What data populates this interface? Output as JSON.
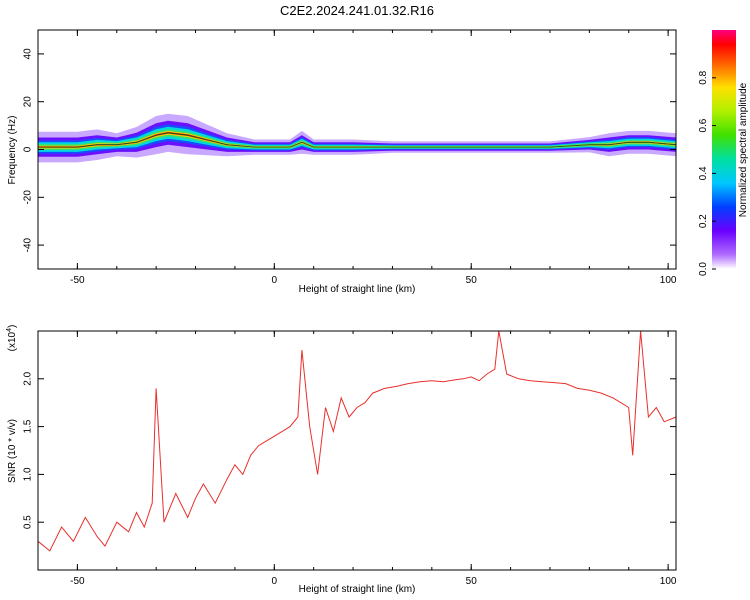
{
  "title": "C2E2.2024.241.01.32.R16",
  "colors": {
    "snr_line": "#e8302c",
    "spectrogram_low": "#7a00ff",
    "spectrogram_mid": "#00e0d0",
    "spectrogram_high": "#ff0000",
    "axes": "#000000"
  },
  "chart_data": [
    {
      "type": "heatmap",
      "name": "spectrogram",
      "xlabel": "Height of straight line (km)",
      "ylabel": "Frequency (Hz)",
      "xlim": [
        -60,
        102
      ],
      "ylim": [
        -50,
        50
      ],
      "xticks": [
        "-50",
        "0",
        "50",
        "100"
      ],
      "yticks": [
        "40",
        "20",
        "0",
        "-20",
        "-40"
      ],
      "grid": false,
      "band": {
        "x": [
          -60,
          -55,
          -50,
          -45,
          -40,
          -35,
          -30,
          -27,
          -22,
          -17,
          -12,
          -5,
          0,
          4,
          7,
          10,
          15,
          20,
          30,
          40,
          50,
          60,
          70,
          80,
          85,
          90,
          95,
          102
        ],
        "center": [
          1,
          1,
          1,
          2,
          2,
          3,
          6,
          7,
          6,
          4,
          2,
          1,
          1,
          1,
          3,
          1,
          1,
          1,
          1,
          1,
          1,
          1,
          1,
          2,
          2,
          3,
          3,
          2
        ],
        "width": [
          4,
          4,
          4,
          4,
          3,
          4,
          5,
          5,
          5,
          4,
          3,
          2,
          2,
          2,
          3,
          2,
          2,
          2,
          1.5,
          1.5,
          1.5,
          1.5,
          1.5,
          2,
          3,
          3,
          3,
          3
        ]
      },
      "colorbar": {
        "label": "Normalized spectral amplitude",
        "ticks": [
          "0.0",
          "0.2",
          "0.4",
          "0.6",
          "0.8"
        ],
        "range": [
          0,
          1
        ]
      }
    },
    {
      "type": "line",
      "name": "snr",
      "xlabel": "Height of straight line (km)",
      "ylabel": "SNR (10 * v/v)",
      "scale_label": "(x10",
      "scale_exp": "4",
      "xlim": [
        -60,
        102
      ],
      "ylim": [
        0,
        2.5
      ],
      "xticks": [
        "-50",
        "0",
        "50",
        "100"
      ],
      "yticks": [
        "2.0",
        "1.5",
        "1.0",
        "0.5"
      ],
      "grid": false,
      "x": [
        -60,
        -57,
        -54,
        -51,
        -48,
        -45,
        -43,
        -40,
        -37,
        -35,
        -33,
        -31,
        -30,
        -28,
        -25,
        -22,
        -20,
        -18,
        -15,
        -12,
        -10,
        -8,
        -6,
        -4,
        -2,
        0,
        2,
        4,
        6,
        7,
        9,
        11,
        13,
        15,
        17,
        19,
        21,
        23,
        25,
        28,
        31,
        34,
        37,
        40,
        43,
        46,
        48,
        50,
        52,
        54,
        56,
        57,
        59,
        62,
        65,
        68,
        71,
        74,
        77,
        80,
        83,
        86,
        88,
        90,
        91,
        93,
        95,
        97,
        99,
        102
      ],
      "y": [
        0.3,
        0.2,
        0.45,
        0.3,
        0.55,
        0.35,
        0.25,
        0.5,
        0.4,
        0.6,
        0.45,
        0.7,
        1.9,
        0.5,
        0.8,
        0.55,
        0.75,
        0.9,
        0.7,
        0.95,
        1.1,
        1.0,
        1.2,
        1.3,
        1.35,
        1.4,
        1.45,
        1.5,
        1.6,
        2.3,
        1.5,
        1.0,
        1.7,
        1.45,
        1.8,
        1.6,
        1.7,
        1.75,
        1.85,
        1.9,
        1.92,
        1.95,
        1.97,
        1.98,
        1.97,
        1.99,
        2.0,
        2.02,
        1.98,
        2.05,
        2.1,
        2.55,
        2.05,
        2.0,
        1.98,
        1.97,
        1.96,
        1.95,
        1.9,
        1.88,
        1.85,
        1.8,
        1.75,
        1.7,
        1.2,
        2.5,
        1.6,
        1.7,
        1.55,
        1.6
      ]
    }
  ]
}
